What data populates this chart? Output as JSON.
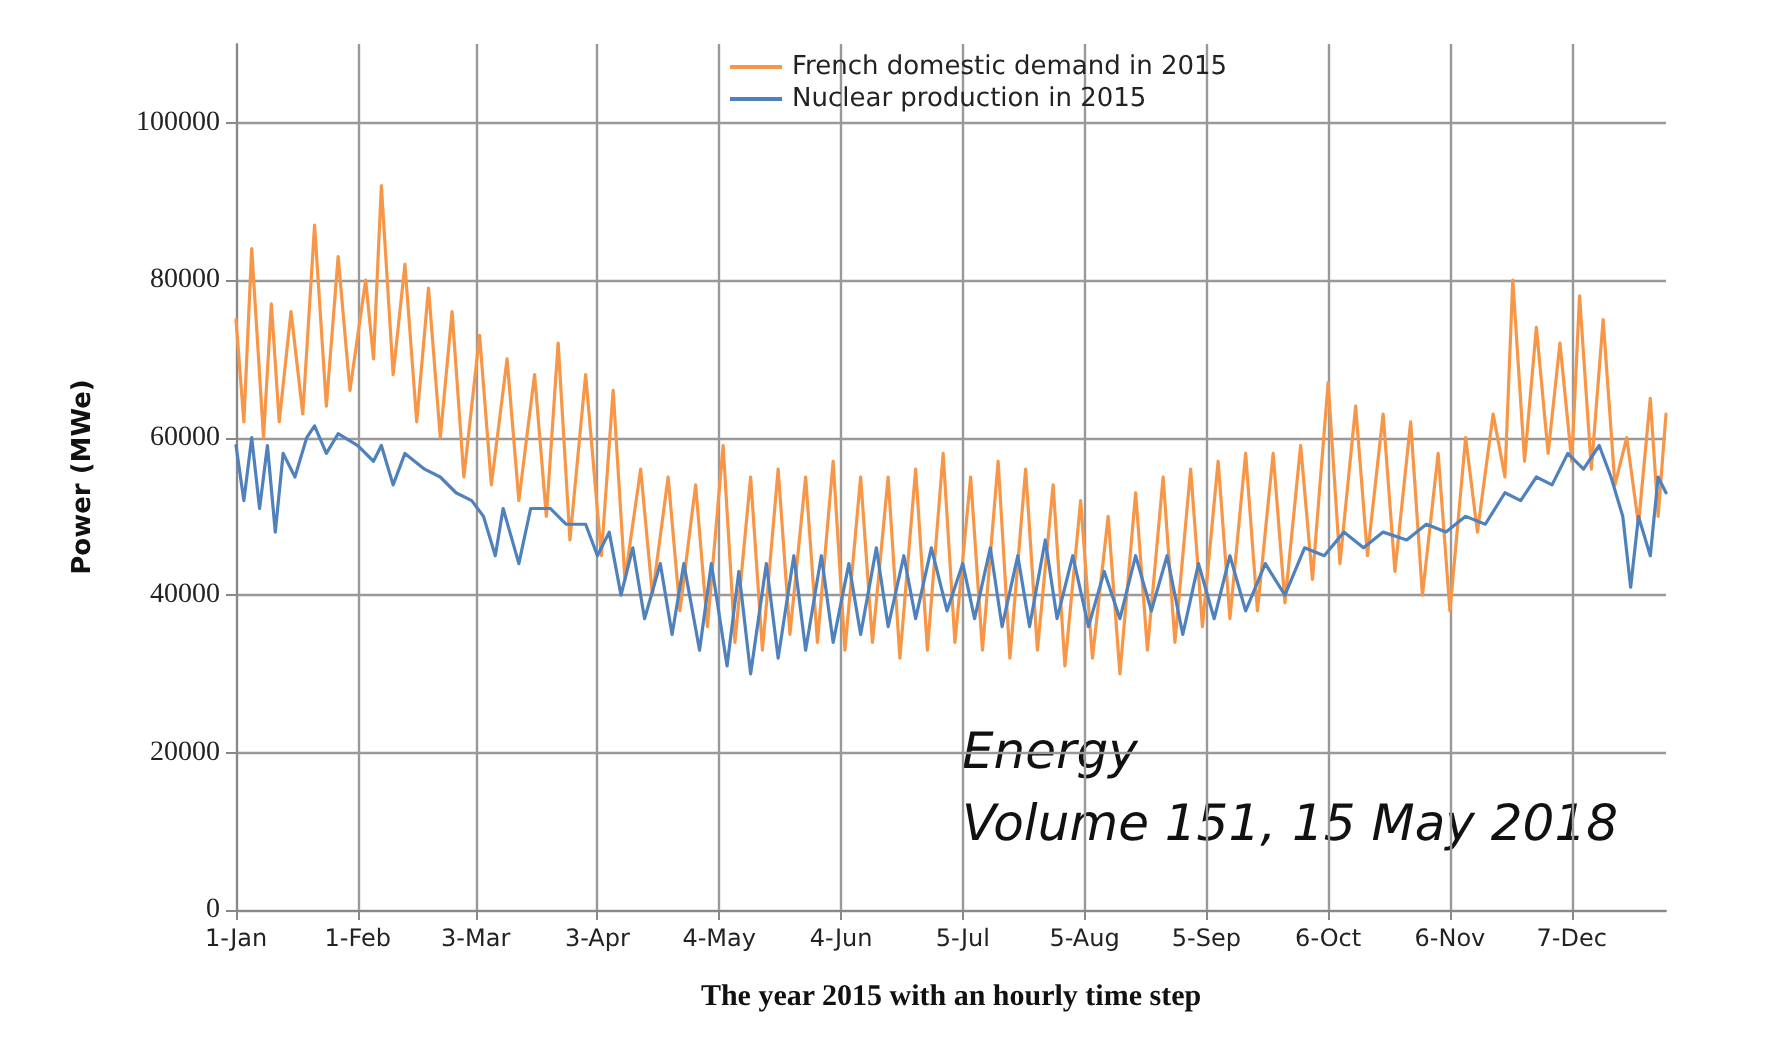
{
  "chart_data": {
    "type": "line",
    "xlabel": "The year 2015 with an hourly time step",
    "ylabel": "Power (MWe)",
    "annotations": [
      "Energy",
      "Volume 151, 15 May 2018"
    ],
    "xlim": [
      "2015-01-01",
      "2015-12-31"
    ],
    "xticks": [
      {
        "value": "2015-01-01",
        "label": "1-Jan"
      },
      {
        "value": "2015-02-01",
        "label": "1-Feb"
      },
      {
        "value": "2015-03-03",
        "label": "3-Mar"
      },
      {
        "value": "2015-04-03",
        "label": "3-Apr"
      },
      {
        "value": "2015-05-04",
        "label": "4-May"
      },
      {
        "value": "2015-06-04",
        "label": "4-Jun"
      },
      {
        "value": "2015-07-05",
        "label": "5-Jul"
      },
      {
        "value": "2015-08-05",
        "label": "5-Aug"
      },
      {
        "value": "2015-09-05",
        "label": "5-Sep"
      },
      {
        "value": "2015-10-06",
        "label": "6-Oct"
      },
      {
        "value": "2015-11-06",
        "label": "6-Nov"
      },
      {
        "value": "2015-12-07",
        "label": "7-Dec"
      }
    ],
    "ylim": [
      0,
      110000
    ],
    "yticks": [
      0,
      20000,
      40000,
      60000,
      80000,
      100000
    ],
    "grid": true,
    "legend": "top",
    "marker": "none",
    "line_style": "solid",
    "series": [
      {
        "name": "French domestic demand in 2015",
        "color": "#f79646",
        "x": [
          "2015-01-01",
          "2015-01-03",
          "2015-01-05",
          "2015-01-08",
          "2015-01-10",
          "2015-01-12",
          "2015-01-15",
          "2015-01-18",
          "2015-01-21",
          "2015-01-24",
          "2015-01-27",
          "2015-01-30",
          "2015-02-03",
          "2015-02-05",
          "2015-02-07",
          "2015-02-10",
          "2015-02-13",
          "2015-02-16",
          "2015-02-19",
          "2015-02-22",
          "2015-02-25",
          "2015-02-28",
          "2015-03-04",
          "2015-03-07",
          "2015-03-11",
          "2015-03-14",
          "2015-03-18",
          "2015-03-21",
          "2015-03-24",
          "2015-03-27",
          "2015-03-31",
          "2015-04-04",
          "2015-04-07",
          "2015-04-10",
          "2015-04-14",
          "2015-04-17",
          "2015-04-21",
          "2015-04-24",
          "2015-04-28",
          "2015-05-01",
          "2015-05-05",
          "2015-05-08",
          "2015-05-12",
          "2015-05-15",
          "2015-05-19",
          "2015-05-22",
          "2015-05-26",
          "2015-05-29",
          "2015-06-02",
          "2015-06-05",
          "2015-06-09",
          "2015-06-12",
          "2015-06-16",
          "2015-06-19",
          "2015-06-23",
          "2015-06-26",
          "2015-06-30",
          "2015-07-03",
          "2015-07-07",
          "2015-07-10",
          "2015-07-14",
          "2015-07-17",
          "2015-07-21",
          "2015-07-24",
          "2015-07-28",
          "2015-07-31",
          "2015-08-04",
          "2015-08-07",
          "2015-08-11",
          "2015-08-14",
          "2015-08-18",
          "2015-08-21",
          "2015-08-25",
          "2015-08-28",
          "2015-09-01",
          "2015-09-04",
          "2015-09-08",
          "2015-09-11",
          "2015-09-15",
          "2015-09-18",
          "2015-09-22",
          "2015-09-25",
          "2015-09-29",
          "2015-10-02",
          "2015-10-06",
          "2015-10-09",
          "2015-10-13",
          "2015-10-16",
          "2015-10-20",
          "2015-10-23",
          "2015-10-27",
          "2015-10-30",
          "2015-11-03",
          "2015-11-06",
          "2015-11-10",
          "2015-11-13",
          "2015-11-17",
          "2015-11-20",
          "2015-11-22",
          "2015-11-25",
          "2015-11-28",
          "2015-12-01",
          "2015-12-04",
          "2015-12-07",
          "2015-12-09",
          "2015-12-12",
          "2015-12-15",
          "2015-12-18",
          "2015-12-21",
          "2015-12-24",
          "2015-12-27",
          "2015-12-29",
          "2015-12-31"
        ],
        "values": [
          75000,
          62000,
          84000,
          60000,
          77000,
          62000,
          76000,
          63000,
          87000,
          64000,
          83000,
          66000,
          80000,
          70000,
          92000,
          68000,
          82000,
          62000,
          79000,
          60000,
          76000,
          55000,
          73000,
          54000,
          70000,
          52000,
          68000,
          50000,
          72000,
          47000,
          68000,
          45000,
          66000,
          42000,
          56000,
          40000,
          55000,
          38000,
          54000,
          36000,
          59000,
          34000,
          55000,
          33000,
          56000,
          35000,
          55000,
          34000,
          57000,
          33000,
          55000,
          34000,
          55000,
          32000,
          56000,
          33000,
          58000,
          34000,
          55000,
          33000,
          57000,
          32000,
          56000,
          33000,
          54000,
          31000,
          52000,
          32000,
          50000,
          30000,
          53000,
          33000,
          55000,
          34000,
          56000,
          36000,
          57000,
          37000,
          58000,
          38000,
          58000,
          39000,
          59000,
          42000,
          67000,
          44000,
          64000,
          45000,
          63000,
          43000,
          62000,
          40000,
          58000,
          38000,
          60000,
          48000,
          63000,
          55000,
          80000,
          57000,
          74000,
          58000,
          72000,
          57000,
          78000,
          56000,
          75000,
          54000,
          60000,
          49000,
          65000,
          50000,
          63000
        ]
      },
      {
        "name": "Nuclear production in 2015",
        "color": "#4f81bd",
        "x": [
          "2015-01-01",
          "2015-01-03",
          "2015-01-05",
          "2015-01-07",
          "2015-01-09",
          "2015-01-11",
          "2015-01-13",
          "2015-01-16",
          "2015-01-19",
          "2015-01-21",
          "2015-01-24",
          "2015-01-27",
          "2015-02-01",
          "2015-02-05",
          "2015-02-07",
          "2015-02-10",
          "2015-02-13",
          "2015-02-18",
          "2015-02-22",
          "2015-02-26",
          "2015-03-02",
          "2015-03-05",
          "2015-03-08",
          "2015-03-10",
          "2015-03-14",
          "2015-03-17",
          "2015-03-22",
          "2015-03-26",
          "2015-03-31",
          "2015-04-03",
          "2015-04-06",
          "2015-04-09",
          "2015-04-12",
          "2015-04-15",
          "2015-04-19",
          "2015-04-22",
          "2015-04-25",
          "2015-04-29",
          "2015-05-02",
          "2015-05-06",
          "2015-05-09",
          "2015-05-12",
          "2015-05-16",
          "2015-05-19",
          "2015-05-23",
          "2015-05-26",
          "2015-05-30",
          "2015-06-02",
          "2015-06-06",
          "2015-06-09",
          "2015-06-13",
          "2015-06-16",
          "2015-06-20",
          "2015-06-23",
          "2015-06-27",
          "2015-07-01",
          "2015-07-05",
          "2015-07-08",
          "2015-07-12",
          "2015-07-15",
          "2015-07-19",
          "2015-07-22",
          "2015-07-26",
          "2015-07-29",
          "2015-08-02",
          "2015-08-06",
          "2015-08-10",
          "2015-08-14",
          "2015-08-18",
          "2015-08-22",
          "2015-08-26",
          "2015-08-30",
          "2015-09-03",
          "2015-09-07",
          "2015-09-11",
          "2015-09-15",
          "2015-09-20",
          "2015-09-25",
          "2015-09-30",
          "2015-10-05",
          "2015-10-10",
          "2015-10-15",
          "2015-10-20",
          "2015-10-26",
          "2015-10-31",
          "2015-11-05",
          "2015-11-10",
          "2015-11-15",
          "2015-11-20",
          "2015-11-24",
          "2015-11-28",
          "2015-12-02",
          "2015-12-06",
          "2015-12-10",
          "2015-12-14",
          "2015-12-17",
          "2015-12-20",
          "2015-12-22",
          "2015-12-24",
          "2015-12-27",
          "2015-12-29",
          "2015-12-31"
        ],
        "values": [
          59000,
          52000,
          60000,
          51000,
          59000,
          48000,
          58000,
          55000,
          60000,
          61500,
          58000,
          60500,
          59000,
          57000,
          59000,
          54000,
          58000,
          56000,
          55000,
          53000,
          52000,
          50000,
          45000,
          51000,
          44000,
          51000,
          51000,
          49000,
          49000,
          45000,
          48000,
          40000,
          46000,
          37000,
          44000,
          35000,
          44000,
          33000,
          44000,
          31000,
          43000,
          30000,
          44000,
          32000,
          45000,
          33000,
          45000,
          34000,
          44000,
          35000,
          46000,
          36000,
          45000,
          37000,
          46000,
          38000,
          44000,
          37000,
          46000,
          36000,
          45000,
          36000,
          47000,
          37000,
          45000,
          36000,
          43000,
          37000,
          45000,
          38000,
          45000,
          35000,
          44000,
          37000,
          45000,
          38000,
          44000,
          40000,
          46000,
          45000,
          48000,
          46000,
          48000,
          47000,
          49000,
          48000,
          50000,
          49000,
          53000,
          52000,
          55000,
          54000,
          58000,
          56000,
          59000,
          55000,
          50000,
          41000,
          50000,
          45000,
          55000,
          53000
        ]
      }
    ]
  }
}
